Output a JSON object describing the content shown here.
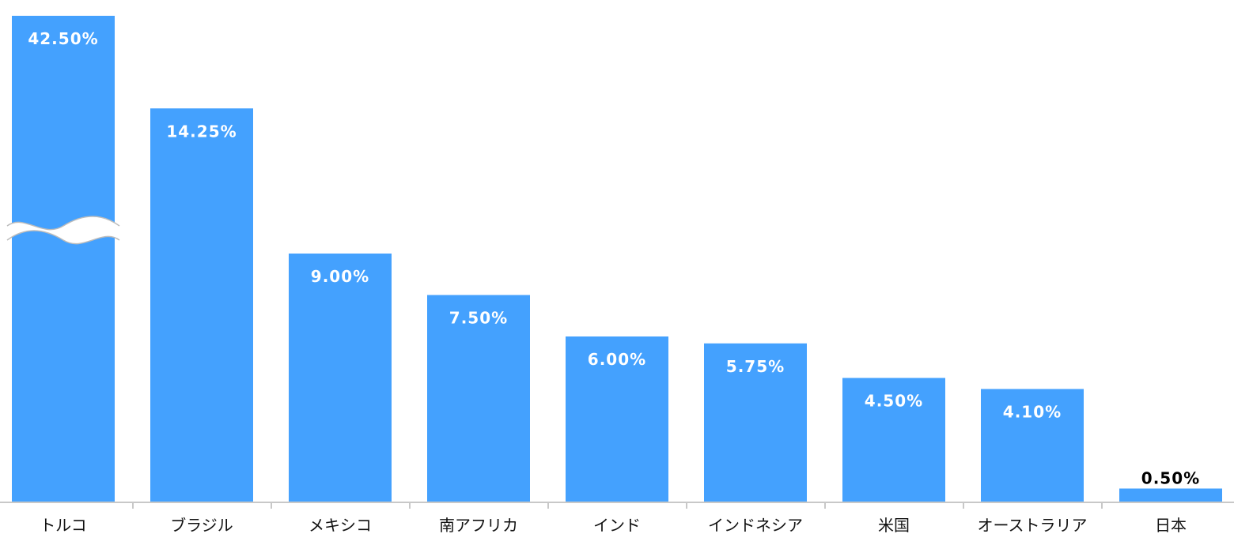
{
  "chart_data": {
    "type": "bar",
    "categories": [
      "トルコ",
      "ブラジル",
      "メキシコ",
      "南アフリカ",
      "インド",
      "インドネシア",
      "米国",
      "オーストラリア",
      "日本"
    ],
    "values": [
      42.5,
      14.25,
      9.0,
      7.5,
      6.0,
      5.75,
      4.5,
      4.1,
      0.5
    ],
    "value_labels": [
      "42.50%",
      "14.25%",
      "9.00%",
      "7.50%",
      "6.00%",
      "5.75%",
      "4.50%",
      "4.10%",
      "0.50%"
    ],
    "unit": "%",
    "title": "",
    "xlabel": "",
    "ylabel": "",
    "axis_break": {
      "bar_index": 0,
      "style": "wavy"
    },
    "grid": false,
    "legend": "none",
    "colors": {
      "bar": "#44a1fe",
      "label_inside": "#ffffff",
      "label_outside": "#000000",
      "axis": "#c8c8c8"
    }
  }
}
